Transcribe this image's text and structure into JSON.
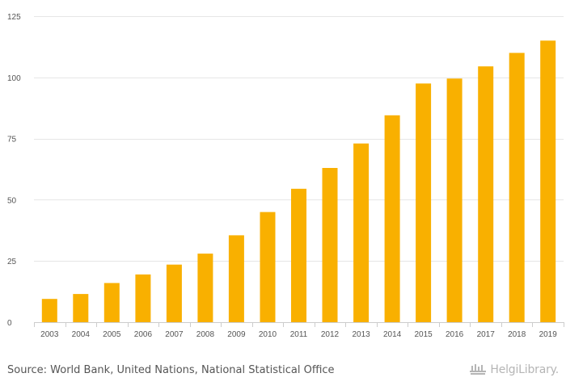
{
  "chart_data": {
    "type": "bar",
    "title": "",
    "xlabel": "",
    "ylabel": "",
    "categories": [
      "2003",
      "2004",
      "2005",
      "2006",
      "2007",
      "2008",
      "2009",
      "2010",
      "2011",
      "2012",
      "2013",
      "2014",
      "2015",
      "2016",
      "2017",
      "2018",
      "2019"
    ],
    "values": [
      9.5,
      11.5,
      16,
      19.5,
      23.5,
      28,
      35.5,
      45,
      54.5,
      63,
      73,
      84.5,
      97.5,
      99.5,
      104.5,
      110,
      115
    ],
    "ylim": [
      0,
      125
    ],
    "yticks": [
      0,
      25,
      50,
      75,
      100,
      125
    ],
    "ytick_labels": [
      "0",
      "25",
      "50",
      "75",
      "100",
      "125"
    ],
    "grid": true,
    "legend": "none",
    "colors": {
      "bar": "#f9b000",
      "grid": "#e6e6e6",
      "axis": "#cccccc",
      "tick_text": "#555555"
    }
  },
  "footer": {
    "source": "Source: World Bank, United Nations, National Statistical Office",
    "brand": "HelgiLibrary.",
    "brand_icon": "helgi-library-logo-icon"
  }
}
